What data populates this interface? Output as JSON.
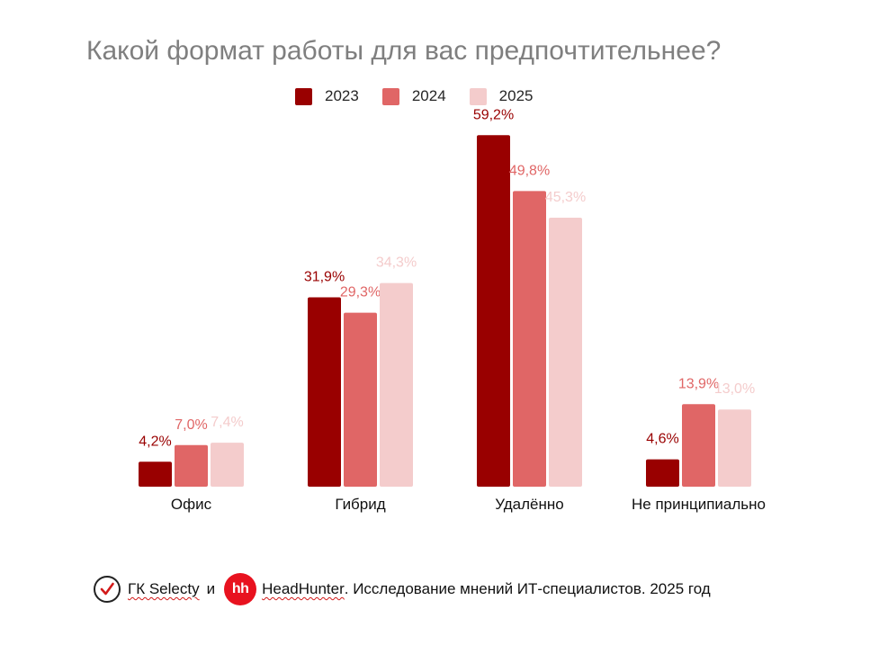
{
  "chart_data": {
    "type": "bar",
    "title": "Какой формат работы для вас предпочтительнее?",
    "xlabel": "",
    "ylabel": "",
    "ylim": [
      0,
      60
    ],
    "grid": false,
    "legend_position": "top",
    "categories": [
      "Офис",
      "Гибрид",
      "Удалённо",
      "Не принципиально"
    ],
    "series": [
      {
        "name": "2023",
        "color": "#990000",
        "values": [
          4.2,
          31.9,
          59.2,
          4.6
        ],
        "labels": [
          "4,2%",
          "31,9%",
          "59,2%",
          "4,6%"
        ]
      },
      {
        "name": "2024",
        "color": "#e06666",
        "values": [
          7.0,
          29.3,
          49.8,
          13.9
        ],
        "labels": [
          "7,0%",
          "29,3%",
          "49,8%",
          "13,9%"
        ]
      },
      {
        "name": "2025",
        "color": "#f4cccc",
        "values": [
          7.4,
          34.3,
          45.3,
          13.0
        ],
        "labels": [
          "7,4%",
          "34,3%",
          "45,3%",
          "13,0%"
        ]
      }
    ]
  },
  "source": {
    "logo1_icon": "checkmark-circle-icon",
    "company1": "ГК Selecty",
    "and": "и",
    "logo2_icon": "hh-logo-icon",
    "logo2_text": "hh",
    "company2": "HeadHunter",
    "description": ". Исследование мнений ИТ-специалистов. 2025 год"
  }
}
